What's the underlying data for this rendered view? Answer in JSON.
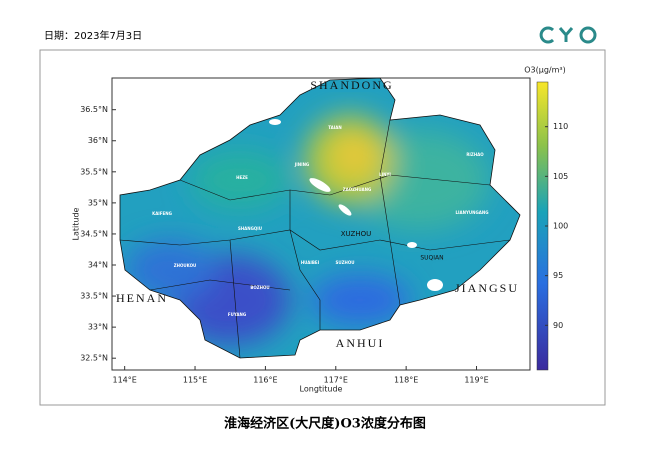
{
  "header": {
    "date": "日期：2023年7月3日"
  },
  "map": {
    "xlabel": "Longtitude",
    "ylabel": "Latitude",
    "xlim": [
      113.82,
      119.76
    ],
    "ylim": [
      32.31,
      37.01
    ],
    "xticks": [
      {
        "value": 114,
        "label": "114°E"
      },
      {
        "value": 115,
        "label": "115°E"
      },
      {
        "value": 116,
        "label": "116°E"
      },
      {
        "value": 117,
        "label": "117°E"
      },
      {
        "value": 118,
        "label": "118°E"
      },
      {
        "value": 119,
        "label": "119°E"
      }
    ],
    "yticks": [
      {
        "value": 32.5,
        "label": "32.5°N"
      },
      {
        "value": 33,
        "label": "33°N"
      },
      {
        "value": 33.5,
        "label": "33.5°N"
      },
      {
        "value": 34,
        "label": "34°N"
      },
      {
        "value": 34.5,
        "label": "34.5°N"
      },
      {
        "value": 35,
        "label": "35°N"
      },
      {
        "value": 35.5,
        "label": "35.5°N"
      },
      {
        "value": 36,
        "label": "36°N"
      },
      {
        "value": 36.5,
        "label": "36.5°N"
      }
    ],
    "provinces": [
      "SHANDONG",
      "HENAN",
      "ANHUI",
      "JIANGSU"
    ],
    "cities": [
      "XUZHOU",
      "SUQIAN",
      "TAIAN",
      "JINING",
      "HEZE",
      "LINYI",
      "RIZHAO",
      "ZAOZHUANG",
      "LIANYUNGANG",
      "KAIFENG",
      "SHANGQIU",
      "ZHOUKOU",
      "HUAIBEI",
      "BOZHOU",
      "SUZHOU",
      "FUYANG"
    ],
    "colorbar": {
      "label": "O3(μg/m³)",
      "lim": [
        85.5,
        114.5
      ],
      "ticks": [
        90,
        95,
        100,
        105,
        110
      ]
    }
  },
  "footer": {
    "title": "淮海经济区(大尺度)O3浓度分布图"
  }
}
